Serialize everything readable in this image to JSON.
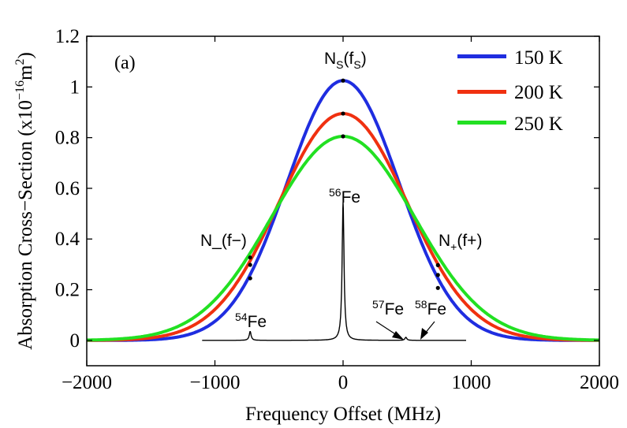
{
  "chart_data": {
    "type": "line",
    "panel_label": "(a)",
    "xlabel": "Frequency Offset (MHz)",
    "ylabel": {
      "prefix": "Absorption Cross−Section (x10",
      "exponent": "−16",
      "unit": "m",
      "unit_exponent": "2",
      "suffix": ")"
    },
    "xlim": [
      -2000,
      2000
    ],
    "ylim": [
      -0.1,
      1.2
    ],
    "xticks": [
      -2000,
      -1000,
      0,
      1000,
      2000
    ],
    "xtick_labels": [
      "−2000",
      "−1000",
      "0",
      "1000",
      "2000"
    ],
    "yticks": [
      0,
      0.2,
      0.4,
      0.6,
      0.8,
      1.0,
      1.2
    ],
    "ytick_labels": [
      "0",
      "0.2",
      "0.4",
      "0.6",
      "0.8",
      "1",
      "1.2"
    ],
    "grid": false,
    "legend_position": "top-right",
    "series": [
      {
        "name": "150 K",
        "color": "#1f2de0",
        "peak": 1.025,
        "fwhm": 1030
      },
      {
        "name": "200 K",
        "color": "#f03010",
        "peak": 0.895,
        "fwhm": 1180
      },
      {
        "name": "250 K",
        "color": "#22e022",
        "peak": 0.805,
        "fwhm": 1310
      }
    ],
    "iron_spectrum": {
      "color": "#000000",
      "range": [
        -1100,
        960
      ],
      "lines": [
        {
          "x": -725,
          "amp": 0.035
        },
        {
          "x": 0,
          "amp": 0.545
        },
        {
          "x": 490,
          "amp": 0.012
        }
      ]
    },
    "sample_points": [
      {
        "x": -725,
        "y": 0.245
      },
      {
        "x": -725,
        "y": 0.298
      },
      {
        "x": -725,
        "y": 0.327
      },
      {
        "x": 0,
        "y": 1.025
      },
      {
        "x": 0,
        "y": 0.895
      },
      {
        "x": 0,
        "y": 0.805
      },
      {
        "x": 740,
        "y": 0.207
      },
      {
        "x": 740,
        "y": 0.258
      },
      {
        "x": 740,
        "y": 0.297
      }
    ],
    "annotations": {
      "ns": {
        "main": "N",
        "sub": "S",
        "mid": "(f",
        "sub2": "S",
        "end": ")"
      },
      "nminus": {
        "text": "N_(f−)"
      },
      "nplus": {
        "main": "N",
        "sub": "+",
        "end": "(f+)"
      },
      "fe56": {
        "sup": "56",
        "text": "Fe"
      },
      "fe54": {
        "sup": "54",
        "text": "Fe"
      },
      "fe57": {
        "sup": "57",
        "text": "Fe"
      },
      "fe58": {
        "sup": "58",
        "text": "Fe"
      }
    }
  }
}
